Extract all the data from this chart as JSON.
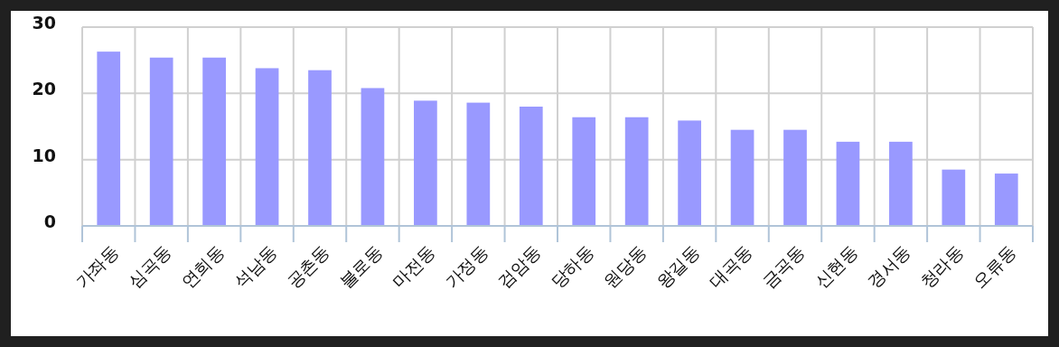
{
  "chart_data": {
    "type": "bar",
    "categories": [
      "가좌동",
      "심곡동",
      "연희동",
      "석남동",
      "공촌동",
      "불로동",
      "마전동",
      "가정동",
      "검암동",
      "당하동",
      "원당동",
      "왕길동",
      "대곡동",
      "금곡동",
      "신현동",
      "경서동",
      "청라동",
      "오류동"
    ],
    "values": [
      26.3,
      25.4,
      25.4,
      23.8,
      23.5,
      20.8,
      18.9,
      18.6,
      18.0,
      16.4,
      16.4,
      15.9,
      14.5,
      14.5,
      12.7,
      12.7,
      8.5,
      7.9
    ],
    "color": "#9999ff",
    "ylim": [
      0,
      30
    ],
    "yticks": [
      0,
      10,
      20,
      30
    ],
    "grid": true
  }
}
